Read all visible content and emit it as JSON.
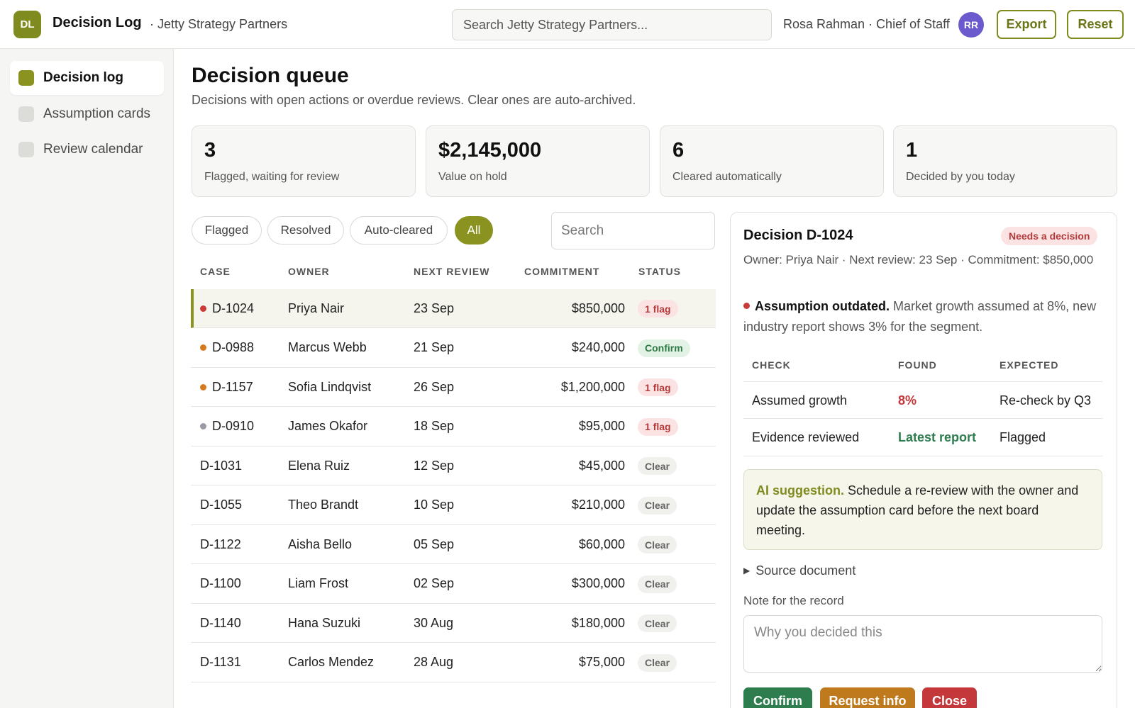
{
  "header": {
    "logo_text": "DL",
    "app_title": "Decision Log",
    "org_name": "Jetty Strategy Partners",
    "search_placeholder": "Search Jetty Strategy Partners...",
    "user": "Rosa Rahman · Chief of Staff",
    "avatar_initials": "RR",
    "export_label": "Export",
    "reset_label": "Reset"
  },
  "sidebar": {
    "items": [
      {
        "label": "Decision log",
        "active": true
      },
      {
        "label": "Assumption cards",
        "active": false
      },
      {
        "label": "Review calendar",
        "active": false
      }
    ]
  },
  "main": {
    "title": "Decision queue",
    "subtitle": "Decisions with open actions or overdue reviews. Clear ones are auto-archived.",
    "stats": [
      {
        "value": "3",
        "label": "Flagged, waiting for review"
      },
      {
        "value": "$2,145,000",
        "label": "Value on hold"
      },
      {
        "value": "6",
        "label": "Cleared automatically"
      },
      {
        "value": "1",
        "label": "Decided by you today"
      }
    ],
    "filters": [
      "Flagged",
      "Resolved",
      "Auto-cleared",
      "All"
    ],
    "active_filter": "All",
    "search_placeholder": "Search",
    "columns": [
      "CASE",
      "OWNER",
      "NEXT REVIEW",
      "COMMITMENT",
      "STATUS"
    ],
    "rows": [
      {
        "case": "D-1024",
        "owner": "Priya Nair",
        "review": "23 Sep",
        "commitment": "$850,000",
        "status": "1 flag",
        "kind": "flag",
        "dot": "red",
        "selected": true
      },
      {
        "case": "D-0988",
        "owner": "Marcus Webb",
        "review": "21 Sep",
        "commitment": "$240,000",
        "status": "Confirm",
        "kind": "confirm",
        "dot": "orange",
        "selected": false
      },
      {
        "case": "D-1157",
        "owner": "Sofia Lindqvist",
        "review": "26 Sep",
        "commitment": "$1,200,000",
        "status": "1 flag",
        "kind": "flag",
        "dot": "orange",
        "selected": false
      },
      {
        "case": "D-0910",
        "owner": "James Okafor",
        "review": "18 Sep",
        "commitment": "$95,000",
        "status": "1 flag",
        "kind": "flag",
        "dot": "gray",
        "selected": false
      },
      {
        "case": "D-1031",
        "owner": "Elena Ruiz",
        "review": "12 Sep",
        "commitment": "$45,000",
        "status": "Clear",
        "kind": "clear",
        "dot": "",
        "selected": false
      },
      {
        "case": "D-1055",
        "owner": "Theo Brandt",
        "review": "10 Sep",
        "commitment": "$210,000",
        "status": "Clear",
        "kind": "clear",
        "dot": "",
        "selected": false
      },
      {
        "case": "D-1122",
        "owner": "Aisha Bello",
        "review": "05 Sep",
        "commitment": "$60,000",
        "status": "Clear",
        "kind": "clear",
        "dot": "",
        "selected": false
      },
      {
        "case": "D-1100",
        "owner": "Liam Frost",
        "review": "02 Sep",
        "commitment": "$300,000",
        "status": "Clear",
        "kind": "clear",
        "dot": "",
        "selected": false
      },
      {
        "case": "D-1140",
        "owner": "Hana Suzuki",
        "review": "30 Aug",
        "commitment": "$180,000",
        "status": "Clear",
        "kind": "clear",
        "dot": "",
        "selected": false
      },
      {
        "case": "D-1131",
        "owner": "Carlos Mendez",
        "review": "28 Aug",
        "commitment": "$75,000",
        "status": "Clear",
        "kind": "clear",
        "dot": "",
        "selected": false
      }
    ]
  },
  "detail": {
    "title": "Decision D-1024",
    "badge": "Needs a decision",
    "meta": "Owner: Priya Nair · Next review: 23 Sep · Commitment: $850,000",
    "alert_title": "Assumption outdated.",
    "alert_text": "Market growth assumed at 8%, new industry report shows 3% for the segment.",
    "check_columns": [
      "CHECK",
      "FOUND",
      "EXPECTED"
    ],
    "checks": [
      {
        "check": "Assumed growth",
        "found": "8%",
        "found_tone": "bad",
        "expected": "Re-check by Q3"
      },
      {
        "check": "Evidence reviewed",
        "found": "Latest report",
        "found_tone": "good",
        "expected": "Flagged"
      }
    ],
    "ai_title": "AI suggestion.",
    "ai_text": "Schedule a re-review with the owner and update the assumption card before the next board meeting.",
    "source_label": "Source document",
    "note_label": "Note for the record",
    "note_placeholder": "Why you decided this",
    "actions": [
      {
        "label": "Confirm",
        "color": "#2e7d4f"
      },
      {
        "label": "Request info",
        "color": "#c07a1e"
      },
      {
        "label": "Close",
        "color": "#c4373b"
      }
    ]
  },
  "colors": {
    "accent": "#8a9320",
    "dot_red": "#c93a3a",
    "dot_orange": "#d67a1e",
    "dot_gray": "#9a9aa6",
    "found_bad": "#c4373b",
    "found_good": "#2e7d4f"
  }
}
